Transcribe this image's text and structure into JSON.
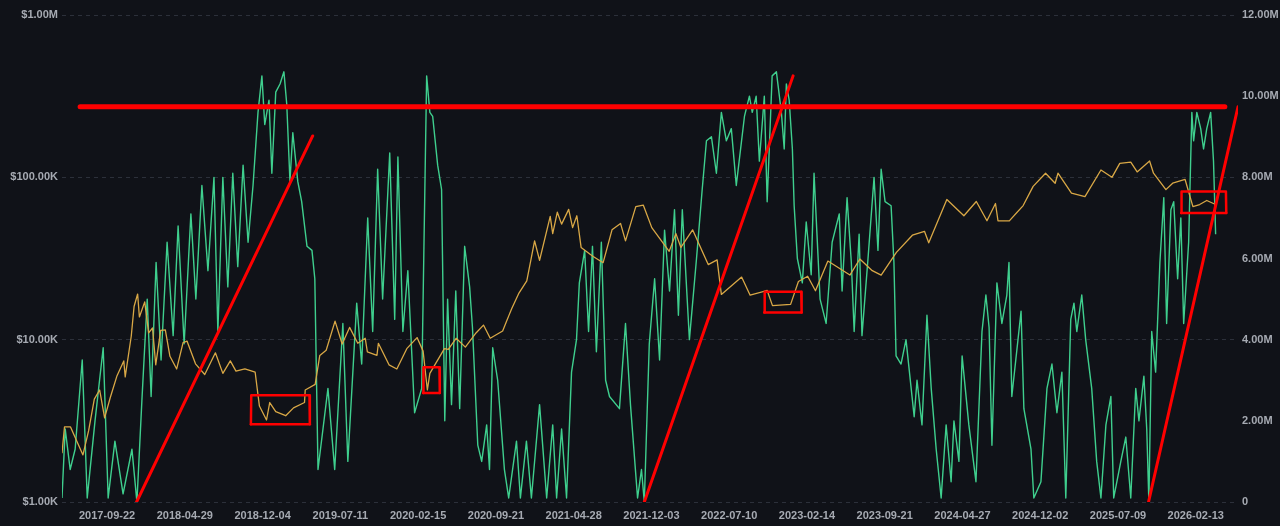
{
  "chart_data": {
    "type": "line",
    "log": "y",
    "grid": "y",
    "marker": "none",
    "xlim": [
      "2017-05-18",
      "2026-06-12"
    ],
    "xticks": [
      "2017-09-22",
      "2018-04-29",
      "2018-12-04",
      "2019-07-11",
      "2020-02-15",
      "2020-09-21",
      "2021-04-28",
      "2021-12-03",
      "2022-07-10",
      "2023-02-14",
      "2023-09-21",
      "2024-04-27",
      "2024-12-02",
      "2025-07-09",
      "2026-02-13"
    ],
    "ylim": [
      1000,
      1000000
    ],
    "yticks": [
      {
        "value": 1000,
        "label": "$1.00K"
      },
      {
        "value": 10000,
        "label": "$10.00K"
      },
      {
        "value": 100000,
        "label": "$100.00K"
      },
      {
        "value": 1000000,
        "label": "$1.00M"
      }
    ],
    "y2lim": [
      0,
      12000000
    ],
    "y2ticks": [
      0,
      {
        "value": 2000000,
        "label": "2.00M"
      },
      {
        "value": 4000000,
        "label": "4.00M"
      },
      {
        "value": 6000000,
        "label": "6.00M"
      },
      {
        "value": 8000000,
        "label": "8.00M"
      },
      {
        "value": 10000000,
        "label": "10.00M"
      },
      {
        "value": 12000000,
        "label": "12.00M"
      }
    ],
    "series": [
      {
        "color": "#3fcf8e",
        "axis": "y2",
        "x": [
          "2017-05-18",
          "2017-05-27",
          "2017-06-10",
          "2017-06-24",
          "2017-07-14",
          "2017-07-28",
          "2017-08-19",
          "2017-09-11",
          "2017-09-25",
          "2017-10-14",
          "2017-11-06",
          "2017-12-01",
          "2017-12-15",
          "2017-12-29",
          "2018-01-13",
          "2018-01-24",
          "2018-02-07",
          "2018-02-21",
          "2018-03-10",
          "2018-03-27",
          "2018-04-10",
          "2018-04-27",
          "2018-05-16",
          "2018-05-30",
          "2018-06-16",
          "2018-07-03",
          "2018-07-20",
          "2018-07-31",
          "2018-08-14",
          "2018-08-28",
          "2018-09-11",
          "2018-09-25",
          "2018-10-10",
          "2018-10-24",
          "2018-11-07",
          "2018-11-21",
          "2018-12-02",
          "2018-12-10",
          "2018-12-22",
          "2018-12-30",
          "2019-01-10",
          "2019-01-22",
          "2019-02-02",
          "2019-02-10",
          "2019-02-19",
          "2019-02-27",
          "2019-03-13",
          "2019-03-24",
          "2019-04-08",
          "2019-04-22",
          "2019-04-30",
          "2019-05-09",
          "2019-06-06",
          "2019-06-25",
          "2019-07-18",
          "2019-08-01",
          "2019-08-26",
          "2019-09-09",
          "2019-09-26",
          "2019-10-10",
          "2019-10-24",
          "2019-11-07",
          "2019-11-27",
          "2019-12-11",
          "2019-12-20",
          "2020-01-03",
          "2020-01-17",
          "2020-02-05",
          "2020-02-25",
          "2020-03-10",
          "2020-03-19",
          "2020-03-27",
          "2020-04-10",
          "2020-04-21",
          "2020-04-30",
          "2020-05-08",
          "2020-05-19",
          "2020-05-31",
          "2020-06-11",
          "2020-06-25",
          "2020-07-09",
          "2020-07-17",
          "2020-08-01",
          "2020-08-12",
          "2020-08-26",
          "2020-09-03",
          "2020-09-12",
          "2020-09-26",
          "2020-10-15",
          "2020-10-27",
          "2020-11-18",
          "2020-11-29",
          "2020-12-16",
          "2020-12-30",
          "2021-01-22",
          "2021-02-11",
          "2021-02-28",
          "2021-03-11",
          "2021-03-25",
          "2021-04-08",
          "2021-04-22",
          "2021-05-06",
          "2021-05-14",
          "2021-05-29",
          "2021-06-09",
          "2021-06-20",
          "2021-07-01",
          "2021-07-15",
          "2021-07-27",
          "2021-08-07",
          "2021-09-04",
          "2021-09-21",
          "2021-10-05",
          "2021-10-25",
          "2021-11-05",
          "2021-11-13",
          "2021-11-27",
          "2021-12-12",
          "2021-12-26",
          "2022-01-09",
          "2022-01-23",
          "2022-02-06",
          "2022-02-17",
          "2022-02-28",
          "2022-03-20",
          "2022-04-09",
          "2022-04-25",
          "2022-05-07",
          "2022-05-21",
          "2022-06-04",
          "2022-06-18",
          "2022-07-02",
          "2022-07-16",
          "2022-07-30",
          "2022-08-22",
          "2022-09-05",
          "2022-09-13",
          "2022-09-24",
          "2022-10-03",
          "2022-10-17",
          "2022-10-25",
          "2022-11-08",
          "2022-11-20",
          "2022-12-04",
          "2022-12-12",
          "2022-12-18",
          "2022-12-26",
          "2023-01-04",
          "2023-01-09",
          "2023-01-18",
          "2023-02-01",
          "2023-02-12",
          "2023-02-26",
          "2023-03-06",
          "2023-03-23",
          "2023-04-09",
          "2023-04-26",
          "2023-05-16",
          "2023-05-24",
          "2023-06-07",
          "2023-06-19",
          "2023-06-27",
          "2023-07-11",
          "2023-07-19",
          "2023-08-05",
          "2023-08-22",
          "2023-09-02",
          "2023-09-11",
          "2023-09-22",
          "2023-10-09",
          "2023-10-17",
          "2023-10-23",
          "2023-11-06",
          "2023-11-20",
          "2023-12-13",
          "2023-12-21",
          "2024-01-04",
          "2024-01-18",
          "2024-01-30",
          "2024-02-13",
          "2024-02-27",
          "2024-03-12",
          "2024-03-26",
          "2024-04-03",
          "2024-04-17",
          "2024-04-26",
          "2024-05-15",
          "2024-06-04",
          "2024-06-21",
          "2024-07-02",
          "2024-07-11",
          "2024-07-19",
          "2024-08-02",
          "2024-08-16",
          "2024-08-30",
          "2024-09-05",
          "2024-09-13",
          "2024-10-09",
          "2024-10-17",
          "2024-11-06",
          "2024-11-14",
          "2024-12-04",
          "2024-12-21",
          "2025-01-04",
          "2025-01-18",
          "2025-02-01",
          "2025-02-12",
          "2025-02-26",
          "2025-03-07",
          "2025-03-15",
          "2025-03-29",
          "2025-04-09",
          "2025-04-26",
          "2025-05-10",
          "2025-05-22",
          "2025-06-05",
          "2025-06-19",
          "2025-06-27",
          "2025-07-17",
          "2025-07-31",
          "2025-08-14",
          "2025-08-28",
          "2025-09-06",
          "2025-09-20",
          "2025-09-28",
          "2025-10-04",
          "2025-10-12",
          "2025-10-23",
          "2025-11-04",
          "2025-11-15",
          "2025-11-23",
          "2025-12-05",
          "2025-12-13",
          "2025-12-24",
          "2026-01-02",
          "2026-01-10",
          "2026-01-24",
          "2026-02-02",
          "2026-02-07",
          "2026-02-16",
          "2026-02-27",
          "2026-03-07",
          "2026-03-16",
          "2026-03-27",
          "2026-04-04",
          "2026-04-10"
        ],
        "values": [
          100000,
          1800000,
          800000,
          1300000,
          3500000,
          100000,
          2000000,
          3800000,
          100000,
          1500000,
          200000,
          1300000,
          0,
          2500000,
          5000000,
          2600000,
          5900000,
          3500000,
          6400000,
          4100000,
          6800000,
          3900000,
          7100000,
          5000000,
          7800000,
          5700000,
          8000000,
          4200000,
          8000000,
          5300000,
          8100000,
          5800000,
          8300000,
          6400000,
          7800000,
          9600000,
          10500000,
          9300000,
          9900000,
          8100000,
          10100000,
          10300000,
          10600000,
          9800000,
          7900000,
          9100000,
          7900000,
          7400000,
          6300000,
          6200000,
          5500000,
          800000,
          2800000,
          800000,
          4400000,
          1000000,
          4900000,
          3400000,
          7000000,
          4200000,
          8200000,
          5000000,
          8600000,
          4500000,
          8500000,
          4200000,
          5700000,
          2200000,
          2800000,
          10500000,
          9600000,
          9500000,
          8300000,
          7700000,
          2000000,
          5000000,
          2400000,
          5200000,
          2300000,
          6300000,
          5300000,
          4300000,
          1400000,
          1000000,
          1900000,
          800000,
          3800000,
          3000000,
          800000,
          100000,
          1500000,
          100000,
          1500000,
          100000,
          2400000,
          100000,
          1900000,
          100000,
          1800000,
          100000,
          3200000,
          4000000,
          5400000,
          6200000,
          4200000,
          6300000,
          3700000,
          6400000,
          3000000,
          2600000,
          2300000,
          4400000,
          2400000,
          100000,
          800000,
          0,
          3900000,
          5500000,
          3500000,
          6700000,
          5200000,
          7200000,
          4600000,
          7200000,
          4000000,
          6000000,
          7700000,
          8900000,
          9000000,
          8100000,
          9600000,
          8900000,
          9200000,
          7800000,
          9500000,
          10000000,
          9600000,
          10000000,
          8400000,
          10000000,
          7400000,
          10500000,
          10600000,
          9600000,
          8700000,
          10300000,
          9900000,
          8700000,
          7300000,
          6000000,
          5400000,
          6900000,
          5600000,
          8100000,
          5000000,
          4400000,
          6400000,
          7100000,
          5200000,
          7500000,
          5900000,
          4200000,
          6600000,
          4100000,
          6000000,
          8000000,
          6200000,
          8200000,
          7400000,
          7300000,
          5900000,
          3600000,
          3400000,
          4000000,
          2100000,
          3000000,
          1900000,
          4600000,
          2800000,
          1300000,
          100000,
          1900000,
          500000,
          2000000,
          1000000,
          3600000,
          1900000,
          500000,
          4200000,
          5100000,
          4300000,
          1400000,
          5400000,
          4400000,
          5100000,
          5900000,
          2600000,
          4700000,
          2300000,
          1300000,
          100000,
          500000,
          2800000,
          3400000,
          2200000,
          3200000,
          100000,
          4500000,
          4900000,
          4200000,
          5100000,
          4000000,
          2800000,
          1000000,
          100000,
          1900000,
          2600000,
          100000,
          1000000,
          1600000,
          100000,
          2800000,
          2000000,
          3100000,
          1800000,
          0,
          4200000,
          3200000,
          5900000,
          7500000,
          4400000,
          7200000,
          7400000,
          5500000,
          7000000,
          4400000,
          6400000,
          9600000,
          8900000,
          9600000,
          9200000,
          8700000,
          9200000,
          9600000,
          8400000,
          6600000
        ]
      },
      {
        "color": "#d9a846",
        "x": [
          "2017-05-18",
          "2017-05-25",
          "2017-06-11",
          "2017-07-16",
          "2017-08-01",
          "2017-08-17",
          "2017-09-01",
          "2017-09-15",
          "2017-10-01",
          "2017-10-20",
          "2017-11-08",
          "2017-11-12",
          "2017-11-29",
          "2017-12-07",
          "2017-12-17",
          "2017-12-22",
          "2018-01-06",
          "2018-01-17",
          "2018-01-28",
          "2018-02-06",
          "2018-02-20",
          "2018-03-05",
          "2018-03-18",
          "2018-04-06",
          "2018-04-24",
          "2018-05-05",
          "2018-05-29",
          "2018-06-24",
          "2018-07-24",
          "2018-08-14",
          "2018-09-04",
          "2018-09-20",
          "2018-10-15",
          "2018-11-13",
          "2018-11-25",
          "2018-12-15",
          "2018-12-24",
          "2019-01-10",
          "2019-02-07",
          "2019-03-01",
          "2019-04-01",
          "2019-04-03",
          "2019-05-01",
          "2019-05-14",
          "2019-06-01",
          "2019-06-26",
          "2019-07-16",
          "2019-08-06",
          "2019-08-29",
          "2019-09-19",
          "2019-09-25",
          "2019-10-22",
          "2019-10-26",
          "2019-11-25",
          "2019-12-17",
          "2020-01-14",
          "2020-02-12",
          "2020-02-29",
          "2020-03-12",
          "2020-03-19",
          "2020-04-29",
          "2020-05-10",
          "2020-06-01",
          "2020-06-27",
          "2020-07-27",
          "2020-08-17",
          "2020-09-05",
          "2020-10-10",
          "2020-10-21",
          "2020-11-05",
          "2020-11-24",
          "2020-12-17",
          "2021-01-08",
          "2021-01-22",
          "2021-02-21",
          "2021-02-28",
          "2021-03-13",
          "2021-03-25",
          "2021-04-14",
          "2021-04-25",
          "2021-05-07",
          "2021-05-19",
          "2021-06-22",
          "2021-07-20",
          "2021-08-14",
          "2021-09-07",
          "2021-09-21",
          "2021-10-20",
          "2021-11-10",
          "2021-12-04",
          "2022-01-22",
          "2022-02-10",
          "2022-02-24",
          "2022-03-29",
          "2022-05-12",
          "2022-06-06",
          "2022-06-18",
          "2022-08-14",
          "2022-09-07",
          "2022-10-25",
          "2022-11-09",
          "2022-12-30",
          "2023-01-21",
          "2023-02-16",
          "2023-03-10",
          "2023-04-14",
          "2023-06-15",
          "2023-07-13",
          "2023-08-17",
          "2023-09-11",
          "2023-10-24",
          "2023-12-08",
          "2024-01-11",
          "2024-01-23",
          "2024-03-14",
          "2024-05-01",
          "2024-06-05",
          "2024-07-05",
          "2024-07-29",
          "2024-08-05",
          "2024-09-06",
          "2024-10-15",
          "2024-11-12",
          "2024-12-17",
          "2025-01-13",
          "2025-01-21",
          "2025-02-28",
          "2025-04-07",
          "2025-05-22",
          "2025-06-22",
          "2025-07-14",
          "2025-08-14",
          "2025-09-01",
          "2025-10-06",
          "2025-10-17",
          "2025-11-21",
          "2025-12-10",
          "2026-01-14",
          "2026-02-05",
          "2026-02-24",
          "2026-03-16",
          "2026-04-10"
        ],
        "values": [
          2000,
          2900,
          2900,
          1950,
          2750,
          4300,
          4900,
          3300,
          4400,
          6000,
          7400,
          5900,
          10500,
          16000,
          19100,
          13800,
          17100,
          11000,
          11800,
          7000,
          11400,
          11500,
          7900,
          6600,
          9600,
          9800,
          7100,
          6100,
          8300,
          6200,
          7400,
          6400,
          6600,
          6300,
          3900,
          3200,
          4100,
          3600,
          3400,
          3800,
          4100,
          4900,
          5300,
          8000,
          8600,
          13000,
          9400,
          11900,
          9500,
          10200,
          8400,
          8000,
          9500,
          7000,
          6600,
          8800,
          10300,
          8500,
          4900,
          6200,
          8800,
          8700,
          10200,
          9000,
          11000,
          12300,
          10200,
          11300,
          13000,
          15600,
          19200,
          23000,
          40600,
          30800,
          57500,
          45000,
          61000,
          51500,
          63500,
          49000,
          58000,
          37000,
          32500,
          29800,
          47500,
          52000,
          40600,
          66000,
          67500,
          49000,
          35000,
          45000,
          37000,
          47500,
          29000,
          31000,
          19000,
          24300,
          18800,
          20100,
          16200,
          16500,
          22800,
          24600,
          20000,
          30500,
          25000,
          31400,
          26600,
          25000,
          34500,
          44000,
          46500,
          39500,
          73000,
          58000,
          71000,
          54000,
          69000,
          54000,
          53900,
          67000,
          88000,
          106000,
          92000,
          106000,
          80000,
          76000,
          111000,
          100000,
          122000,
          124000,
          108000,
          126000,
          106000,
          84000,
          92000,
          97000,
          66000,
          68000,
          72000,
          68000
        ]
      },
      {
        "color": "#ff0000",
        "axis": "y2",
        "x": [
          "2017-07-08",
          "2026-05-06"
        ],
        "values": [
          9740000,
          9740000
        ]
      },
      {
        "color": "#ff0000",
        "axis": "y2",
        "x": [
          "2017-12-14",
          "2019-04-24"
        ],
        "values": [
          0,
          9020000
        ]
      },
      {
        "color": "#ff0000",
        "axis": "y2",
        "x": [
          "2021-11-13",
          "2023-01-06"
        ],
        "values": [
          0,
          10500000
        ]
      },
      {
        "color": "#ff0000",
        "axis": "y2",
        "x": [
          "2025-10-03",
          "2026-06-12"
        ],
        "values": [
          0,
          9740000
        ]
      },
      {
        "color": "#ff0000",
        "x": [
          "2018-11-01",
          "2018-11-02",
          "2019-04-15",
          "2019-04-16"
        ],
        "values": [
          3010,
          4550,
          4550,
          3010
        ]
      },
      {
        "color": "#ff0000",
        "x": [
          "2018-11-01",
          "2019-04-16"
        ],
        "values": [
          3010,
          3010
        ]
      },
      {
        "color": "#ff0000",
        "x": [
          "2020-02-29",
          "2020-03-01",
          "2020-04-15",
          "2020-04-16"
        ],
        "values": [
          4700,
          6760,
          6760,
          4700
        ]
      },
      {
        "color": "#ff0000",
        "x": [
          "2020-02-29",
          "2020-04-16"
        ],
        "values": [
          4700,
          4700
        ]
      },
      {
        "color": "#ff0000",
        "x": [
          "2022-10-17",
          "2022-10-18",
          "2023-01-29",
          "2023-01-30"
        ],
        "values": [
          14700,
          19700,
          19700,
          14700
        ]
      },
      {
        "color": "#ff0000",
        "x": [
          "2022-10-17",
          "2023-01-30"
        ],
        "values": [
          14700,
          14700
        ]
      },
      {
        "color": "#ff0000",
        "x": [
          "2026-01-03",
          "2026-01-04",
          "2026-05-09",
          "2026-05-10"
        ],
        "values": [
          60400,
          81800,
          81800,
          60400
        ]
      },
      {
        "color": "#ff0000",
        "x": [
          "2026-01-03",
          "2026-05-10"
        ],
        "values": [
          60400,
          60400
        ]
      }
    ]
  }
}
